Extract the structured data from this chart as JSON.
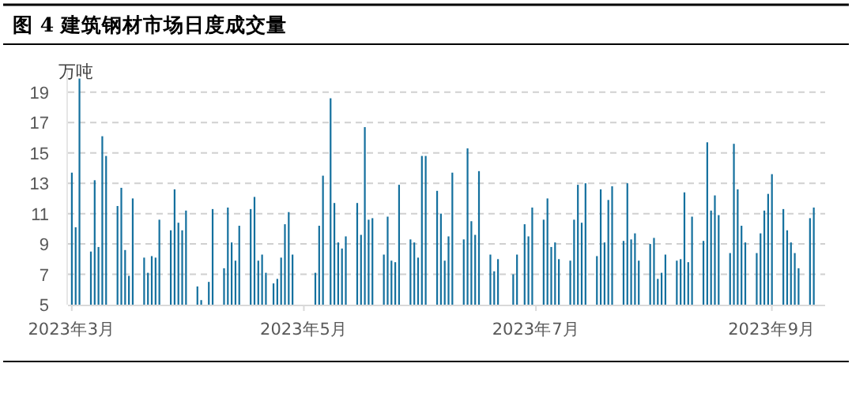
{
  "chart_data": {
    "type": "bar",
    "title": "图 4 建筑钢材市场日度成交量",
    "ylabel": "万吨",
    "color": "#14709e",
    "grid": "y",
    "xlim": [
      "2023-02-28",
      "2023-09-15"
    ],
    "ylim": [
      5,
      20.5
    ],
    "yticks": [
      5,
      7,
      9,
      11,
      13,
      15,
      17,
      19
    ],
    "xticks": [
      {
        "value": "2023-03-01",
        "label": "2023年3月"
      },
      {
        "value": "2023-05-01",
        "label": "2023年5月"
      },
      {
        "value": "2023-07-01",
        "label": "2023年7月"
      },
      {
        "value": "2023-09-01",
        "label": "2023年9月"
      }
    ],
    "x": [
      "2023-03-01",
      "2023-03-02",
      "2023-03-03",
      "2023-03-06",
      "2023-03-07",
      "2023-03-08",
      "2023-03-09",
      "2023-03-10",
      "2023-03-13",
      "2023-03-14",
      "2023-03-15",
      "2023-03-16",
      "2023-03-17",
      "2023-03-20",
      "2023-03-21",
      "2023-03-22",
      "2023-03-23",
      "2023-03-24",
      "2023-03-27",
      "2023-03-28",
      "2023-03-29",
      "2023-03-30",
      "2023-03-31",
      "2023-04-03",
      "2023-04-04",
      "2023-04-06",
      "2023-04-07",
      "2023-04-10",
      "2023-04-11",
      "2023-04-12",
      "2023-04-13",
      "2023-04-14",
      "2023-04-17",
      "2023-04-18",
      "2023-04-19",
      "2023-04-20",
      "2023-04-21",
      "2023-04-23",
      "2023-04-24",
      "2023-04-25",
      "2023-04-26",
      "2023-04-27",
      "2023-04-28",
      "2023-05-04",
      "2023-05-05",
      "2023-05-06",
      "2023-05-08",
      "2023-05-09",
      "2023-05-10",
      "2023-05-11",
      "2023-05-12",
      "2023-05-15",
      "2023-05-16",
      "2023-05-17",
      "2023-05-18",
      "2023-05-19",
      "2023-05-22",
      "2023-05-23",
      "2023-05-24",
      "2023-05-25",
      "2023-05-26",
      "2023-05-29",
      "2023-05-30",
      "2023-05-31",
      "2023-06-01",
      "2023-06-02",
      "2023-06-05",
      "2023-06-06",
      "2023-06-07",
      "2023-06-08",
      "2023-06-09",
      "2023-06-12",
      "2023-06-13",
      "2023-06-14",
      "2023-06-15",
      "2023-06-16",
      "2023-06-19",
      "2023-06-20",
      "2023-06-21",
      "2023-06-25",
      "2023-06-26",
      "2023-06-28",
      "2023-06-29",
      "2023-06-30",
      "2023-07-03",
      "2023-07-04",
      "2023-07-05",
      "2023-07-06",
      "2023-07-07",
      "2023-07-10",
      "2023-07-11",
      "2023-07-12",
      "2023-07-13",
      "2023-07-14",
      "2023-07-17",
      "2023-07-18",
      "2023-07-19",
      "2023-07-20",
      "2023-07-21",
      "2023-07-24",
      "2023-07-25",
      "2023-07-26",
      "2023-07-27",
      "2023-07-28",
      "2023-07-31",
      "2023-08-01",
      "2023-08-02",
      "2023-08-03",
      "2023-08-04",
      "2023-08-07",
      "2023-08-08",
      "2023-08-09",
      "2023-08-10",
      "2023-08-11",
      "2023-08-14",
      "2023-08-15",
      "2023-08-16",
      "2023-08-17",
      "2023-08-18",
      "2023-08-21",
      "2023-08-22",
      "2023-08-23",
      "2023-08-24",
      "2023-08-25",
      "2023-08-28",
      "2023-08-29",
      "2023-08-30",
      "2023-08-31",
      "2023-09-01",
      "2023-09-04",
      "2023-09-05",
      "2023-09-06",
      "2023-09-07",
      "2023-09-08",
      "2023-09-11",
      "2023-09-12"
    ],
    "values": [
      13.7,
      10.1,
      19.9,
      8.5,
      13.2,
      8.8,
      16.1,
      14.8,
      11.5,
      12.7,
      8.6,
      6.9,
      12.0,
      8.1,
      7.1,
      8.2,
      8.1,
      10.6,
      9.9,
      12.6,
      10.4,
      9.9,
      11.2,
      6.2,
      5.3,
      6.5,
      11.3,
      7.4,
      11.4,
      9.1,
      7.9,
      10.2,
      11.3,
      12.1,
      7.9,
      8.3,
      7.1,
      6.4,
      6.7,
      8.1,
      10.3,
      11.1,
      8.3,
      7.1,
      10.2,
      13.5,
      18.6,
      11.7,
      9.1,
      8.7,
      9.5,
      11.7,
      9.6,
      16.7,
      10.6,
      10.7,
      8.3,
      10.8,
      7.9,
      7.8,
      12.9,
      9.3,
      9.1,
      8.1,
      14.8,
      14.8,
      12.5,
      11.0,
      7.9,
      9.5,
      13.7,
      9.3,
      15.3,
      10.5,
      9.6,
      13.8,
      8.3,
      7.2,
      8.0,
      7.0,
      8.3,
      10.3,
      9.5,
      11.4,
      10.6,
      12.0,
      8.8,
      9.1,
      8.0,
      7.9,
      10.6,
      12.9,
      10.4,
      13.0,
      8.2,
      12.6,
      9.1,
      11.9,
      12.8,
      9.2,
      13.0,
      9.3,
      9.7,
      7.9,
      9.0,
      9.4,
      6.7,
      7.1,
      8.3,
      7.9,
      8.0,
      12.4,
      7.8,
      10.8,
      9.2,
      15.7,
      11.2,
      12.2,
      10.9,
      8.4,
      15.6,
      12.6,
      10.2,
      9.1,
      8.4,
      9.7,
      11.2,
      12.3,
      13.6,
      11.3,
      9.9,
      9.1,
      8.4,
      7.4,
      10.7,
      11.4
    ]
  }
}
